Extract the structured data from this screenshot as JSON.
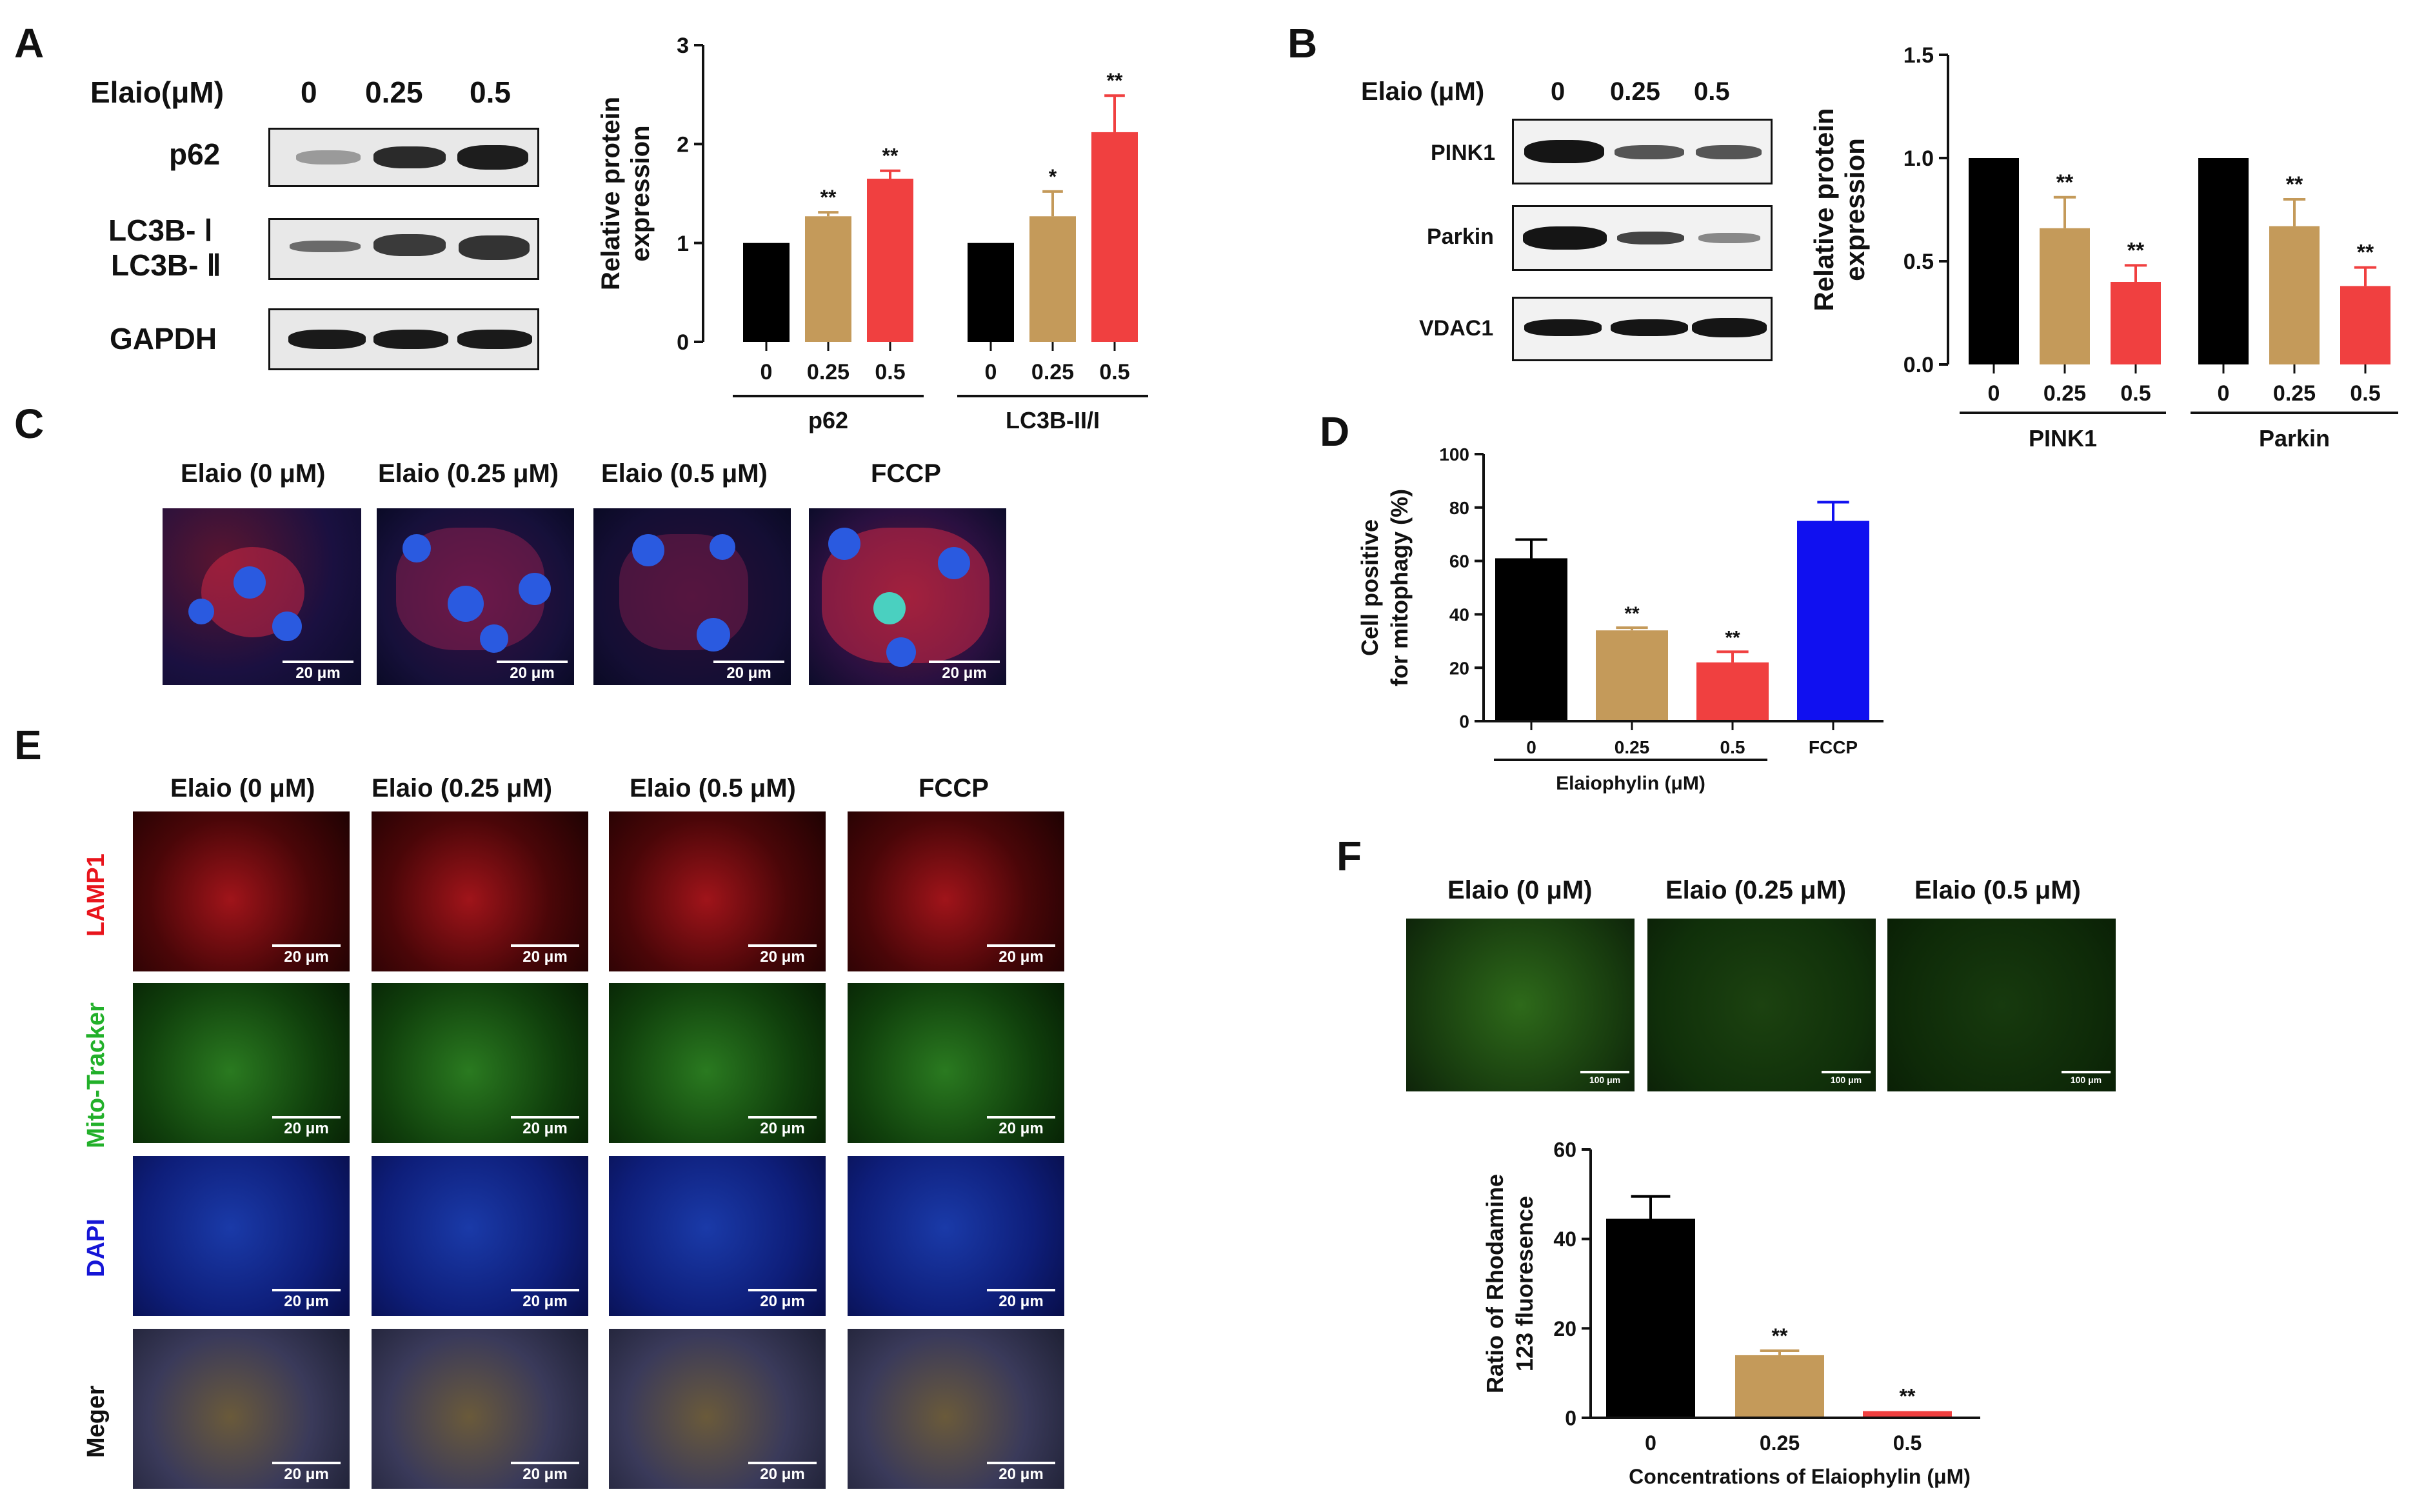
{
  "panels": {
    "A": {
      "letter": "A",
      "treatment_label": "Elaio(μM)",
      "doses": [
        "0",
        "0.25",
        "0.5"
      ],
      "proteins": [
        "p62",
        "LC3B- Ⅰ",
        "LC3B- Ⅱ",
        "GAPDH"
      ]
    },
    "B": {
      "letter": "B",
      "treatment_label": "Elaio (μM)",
      "doses": [
        "0",
        "0.25",
        "0.5"
      ],
      "proteins": [
        "PINK1",
        "Parkin",
        "VDAC1"
      ]
    },
    "C": {
      "letter": "C",
      "image_titles": [
        "Elaio (0 μM)",
        "Elaio (0.25 μM)",
        "Elaio (0.5 μM)",
        "FCCP"
      ],
      "scale_label": "20 μm"
    },
    "D": {
      "letter": "D"
    },
    "E": {
      "letter": "E",
      "column_titles": [
        "Elaio (0 μM)",
        "Elaio (0.25 μM)",
        "Elaio (0.5 μM)",
        "FCCP"
      ],
      "row_labels": [
        "LAMP1",
        "Mito-Tracker",
        "DAPI",
        "Meger"
      ],
      "row_label_colors": [
        "#e8141c",
        "#22b02a",
        "#1515d6",
        "#111111"
      ],
      "scale_label": "20 μm"
    },
    "F": {
      "letter": "F",
      "image_titles": [
        "Elaio (0 μM)",
        "Elaio (0.25 μM)",
        "Elaio (0.5 μM)"
      ],
      "scale_label": "100 μm"
    }
  },
  "colors": {
    "dose0": "#000000",
    "dose025": "#c49a5a",
    "dose05": "#f04040",
    "fccp": "#1010f0"
  },
  "chart_data": [
    {
      "id": "A-bar",
      "type": "bar",
      "ylabel": "Relative protein expression",
      "yticks": [
        "0",
        "1",
        "2",
        "3"
      ],
      "ylim": [
        0,
        3
      ],
      "categories": [
        "0",
        "0.25",
        "0.5",
        "0",
        "0.25",
        "0.5"
      ],
      "groups": [
        "p62",
        "LC3B-II/I"
      ],
      "values": [
        1.0,
        1.27,
        1.65,
        1.0,
        1.27,
        2.12
      ],
      "errors": [
        0,
        0.04,
        0.08,
        0,
        0.25,
        0.37
      ],
      "significance": [
        "",
        "**",
        "**",
        "",
        "*",
        "**"
      ]
    },
    {
      "id": "B-bar",
      "type": "bar",
      "ylabel": "Relative protein expression",
      "yticks": [
        "0.0",
        "0.5",
        "1.0",
        "1.5"
      ],
      "ylim": [
        0,
        1.5
      ],
      "categories": [
        "0",
        "0.25",
        "0.5",
        "0",
        "0.25",
        "0.5"
      ],
      "groups": [
        "PINK1",
        "Parkin"
      ],
      "values": [
        1.0,
        0.66,
        0.4,
        1.0,
        0.67,
        0.38
      ],
      "errors": [
        0,
        0.15,
        0.08,
        0,
        0.13,
        0.09
      ],
      "significance": [
        "",
        "**",
        "**",
        "",
        "**",
        "**"
      ]
    },
    {
      "id": "D-bar",
      "type": "bar",
      "ylabel": "Cell positive for mitophagy (%)",
      "yticks": [
        "0",
        "20",
        "40",
        "60",
        "80",
        "100"
      ],
      "ylim": [
        0,
        100
      ],
      "categories": [
        "0",
        "0.25",
        "0.5",
        "FCCP"
      ],
      "xlabel": "Elaiophylin (μM)",
      "values": [
        61,
        34,
        22,
        75
      ],
      "errors": [
        7,
        1,
        4,
        7
      ],
      "significance": [
        "",
        "**",
        "**",
        ""
      ]
    },
    {
      "id": "F-bar",
      "type": "bar",
      "ylabel": "Ratio of Rhodamine 123 fluoresence",
      "yticks": [
        "0",
        "20",
        "40",
        "60"
      ],
      "ylim": [
        0,
        60
      ],
      "categories": [
        "0",
        "0.25",
        "0.5"
      ],
      "xlabel": "Concentrations of Elaiophylin (μM)",
      "values": [
        44.5,
        14,
        1.5
      ],
      "errors": [
        5,
        1,
        0
      ],
      "significance": [
        "",
        "**",
        "**"
      ]
    }
  ]
}
